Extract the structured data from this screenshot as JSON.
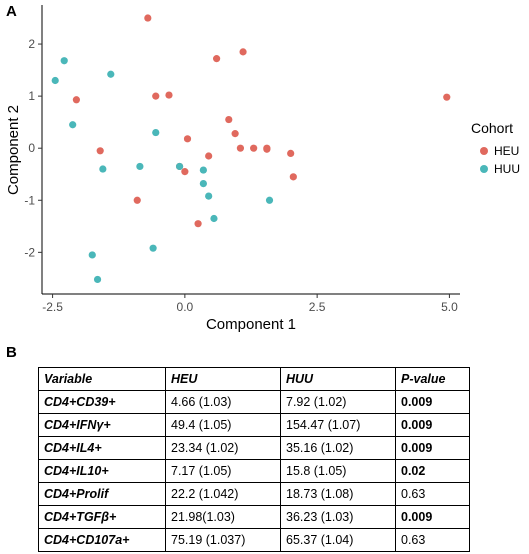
{
  "panel_a_label": "A",
  "panel_b_label": "B",
  "chart_data": {
    "type": "scatter",
    "xlabel": "Component 1",
    "ylabel": "Component 2",
    "xlim": [
      -2.7,
      5.2
    ],
    "ylim": [
      -2.8,
      2.75
    ],
    "xticks": [
      -2.5,
      0.0,
      2.5,
      5.0
    ],
    "xtick_labels": [
      "-2.5",
      "0.0",
      "2.5",
      "5.0"
    ],
    "yticks": [
      -2,
      -1,
      0,
      1,
      2
    ],
    "ytick_labels": [
      "-2",
      "-1",
      "0",
      "1",
      "2"
    ],
    "grid": false,
    "legend": {
      "title": "Cohort",
      "placement": "right"
    },
    "series": [
      {
        "name": "HEU",
        "color": "#e0695e",
        "points": [
          [
            -0.7,
            2.5
          ],
          [
            1.1,
            1.85
          ],
          [
            0.6,
            1.72
          ],
          [
            -2.05,
            0.93
          ],
          [
            -0.55,
            1.0
          ],
          [
            -0.3,
            1.02
          ],
          [
            -1.6,
            -0.05
          ],
          [
            0.05,
            0.18
          ],
          [
            0.83,
            0.55
          ],
          [
            0.95,
            0.28
          ],
          [
            -0.1,
            -0.35
          ],
          [
            0.0,
            -0.45
          ],
          [
            0.45,
            -0.15
          ],
          [
            1.05,
            0.0
          ],
          [
            1.3,
            0.0
          ],
          [
            1.55,
            -0.02
          ],
          [
            1.55,
            0.0
          ],
          [
            2.0,
            -0.1
          ],
          [
            2.05,
            -0.55
          ],
          [
            -0.9,
            -1.0
          ],
          [
            0.25,
            -1.45
          ],
          [
            4.95,
            0.98
          ]
        ]
      },
      {
        "name": "HUU",
        "color": "#4ab7b9",
        "points": [
          [
            -2.28,
            1.68
          ],
          [
            -2.45,
            1.3
          ],
          [
            -1.4,
            1.42
          ],
          [
            -2.12,
            0.45
          ],
          [
            -0.55,
            0.3
          ],
          [
            -1.55,
            -0.4
          ],
          [
            -0.85,
            -0.35
          ],
          [
            -0.1,
            -0.35
          ],
          [
            0.35,
            -0.42
          ],
          [
            0.35,
            -0.68
          ],
          [
            0.45,
            -0.92
          ],
          [
            0.55,
            -1.35
          ],
          [
            1.6,
            -1.0
          ],
          [
            -1.75,
            -2.05
          ],
          [
            -0.6,
            -1.92
          ],
          [
            -1.65,
            -2.52
          ]
        ]
      }
    ]
  },
  "table": {
    "headers": [
      "Variable",
      "HEU",
      "HUU",
      "P-value"
    ],
    "rows": [
      {
        "variable": "CD4+CD39+",
        "heu": "4.66 (1.03)",
        "huu": "7.92 (1.02)",
        "p": "0.009",
        "p_bold": true
      },
      {
        "variable": "CD4+IFNγ+",
        "heu": "49.4 (1.05)",
        "huu": "154.47 (1.07)",
        "p": "0.009",
        "p_bold": true
      },
      {
        "variable": "CD4+IL4+",
        "heu": "23.34 (1.02)",
        "huu": "35.16 (1.02)",
        "p": "0.009",
        "p_bold": true
      },
      {
        "variable": "CD4+IL10+",
        "heu": "7.17 (1.05)",
        "huu": "15.8 (1.05)",
        "p": "0.02",
        "p_bold": true
      },
      {
        "variable": "CD4+Prolif",
        "heu": "22.2 (1.042)",
        "huu": "18.73 (1.08)",
        "p": "0.63",
        "p_bold": false
      },
      {
        "variable": "CD4+TGFβ+",
        "heu": "21.98(1.03)",
        "huu": "36.23 (1.03)",
        "p": "0.009",
        "p_bold": true
      },
      {
        "variable": "CD4+CD107a+",
        "heu": "75.19 (1.037)",
        "huu": "65.37 (1.04)",
        "p": "0.63",
        "p_bold": false
      }
    ]
  }
}
